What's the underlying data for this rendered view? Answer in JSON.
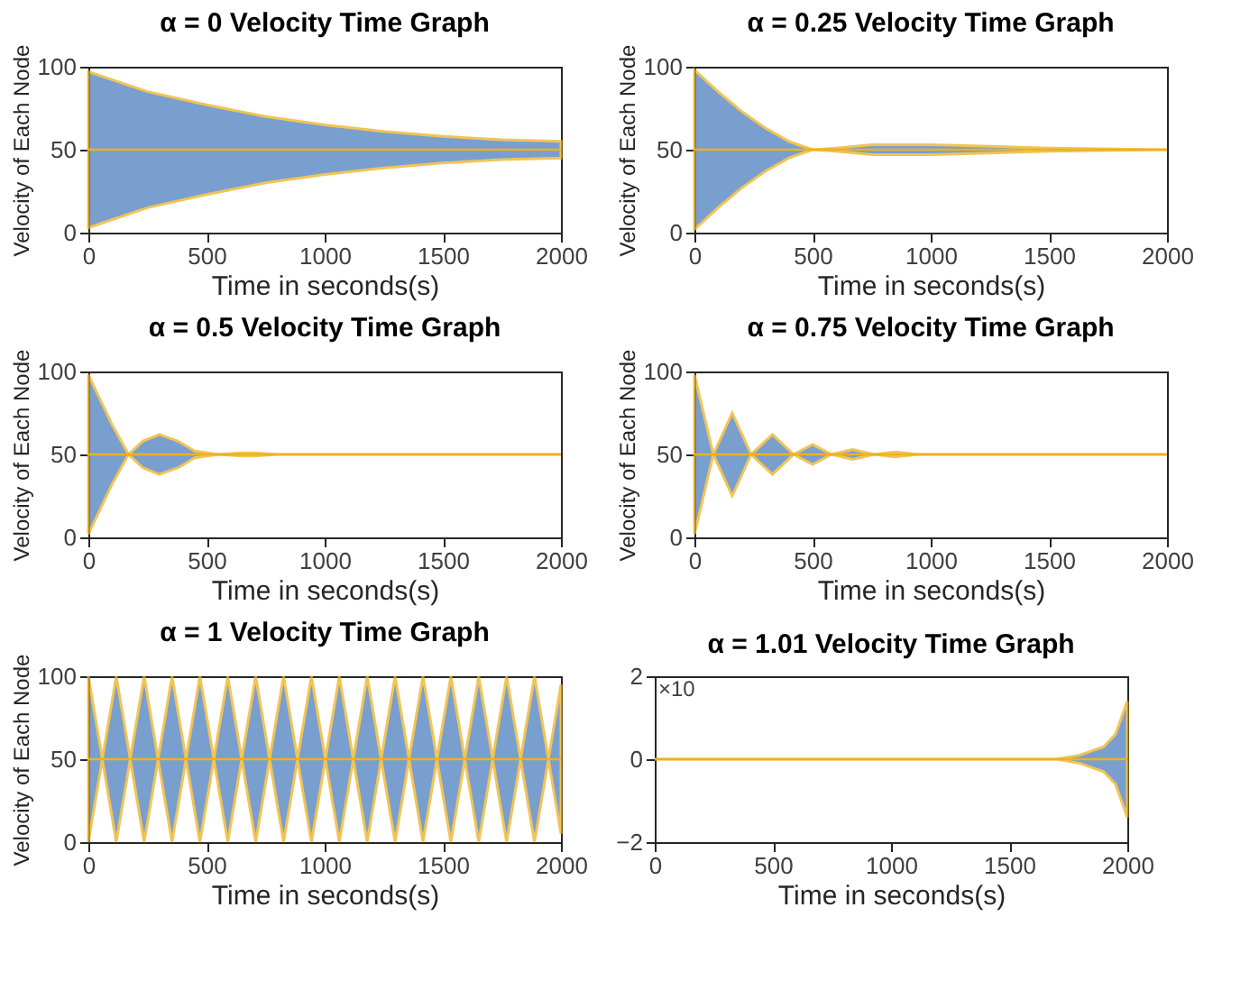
{
  "chart_data": [
    {
      "type": "line",
      "title": "α = 0 Velocity Time Graph",
      "xlabel": "Time in seconds(s)",
      "ylabel": "Velocity of Each Node",
      "xlim": [
        0,
        2000
      ],
      "xticks": [
        0,
        500,
        1000,
        1500,
        2000
      ],
      "ylim": [
        0,
        100
      ],
      "yticks": [
        0,
        50,
        100
      ],
      "grid": false,
      "series": [
        {
          "color": "#edb120",
          "x": [
            0,
            250,
            500,
            750,
            1000,
            1250,
            1500,
            1750,
            2000
          ],
          "values": [
            50,
            50,
            50,
            50,
            50,
            50,
            50,
            50,
            50
          ],
          "lower": [
            3,
            15,
            23,
            30,
            35,
            39,
            42,
            44,
            45
          ],
          "upper": [
            97,
            85,
            77,
            70,
            65,
            61,
            58,
            56,
            55
          ]
        }
      ]
    },
    {
      "type": "line",
      "title": "α = 0.25 Velocity Time Graph",
      "xlabel": "Time in seconds(s)",
      "ylabel": "Velocity of Each Node",
      "xlim": [
        0,
        2000
      ],
      "xticks": [
        0,
        500,
        1000,
        1500,
        2000
      ],
      "ylim": [
        0,
        100
      ],
      "yticks": [
        0,
        50,
        100
      ],
      "grid": false,
      "series": [
        {
          "color": "#edb120",
          "x": [
            0,
            100,
            200,
            300,
            400,
            500,
            600,
            750,
            1000,
            1250,
            1500,
            2000
          ],
          "values": [
            50,
            50,
            50,
            50,
            50,
            50,
            50,
            50,
            50,
            50,
            50,
            50
          ],
          "lower": [
            2,
            15,
            27,
            37,
            45,
            50,
            49,
            47,
            47,
            48,
            49,
            50
          ],
          "upper": [
            98,
            85,
            73,
            63,
            55,
            50,
            51,
            53,
            53,
            52,
            51,
            50
          ]
        }
      ]
    },
    {
      "type": "line",
      "title": "α = 0.5 Velocity Time Graph",
      "xlabel": "Time in seconds(s)",
      "ylabel": "Velocity of Each Node",
      "xlim": [
        0,
        2000
      ],
      "xticks": [
        0,
        500,
        1000,
        1500,
        2000
      ],
      "ylim": [
        0,
        100
      ],
      "yticks": [
        0,
        50,
        100
      ],
      "grid": false,
      "series": [
        {
          "color": "#edb120",
          "x": [
            0,
            50,
            100,
            170,
            230,
            300,
            380,
            450,
            550,
            650,
            700,
            800,
            2000
          ],
          "values": [
            50,
            50,
            50,
            50,
            50,
            50,
            50,
            50,
            50,
            50,
            50,
            50,
            50
          ],
          "lower": [
            2,
            17,
            32,
            50,
            42,
            38,
            42,
            48,
            50,
            49,
            49,
            50,
            50
          ],
          "upper": [
            98,
            83,
            68,
            50,
            58,
            62,
            58,
            52,
            50,
            51,
            51,
            50,
            50
          ]
        }
      ]
    },
    {
      "type": "line",
      "title": "α = 0.75 Velocity Time Graph",
      "xlabel": "Time in seconds(s)",
      "ylabel": "Velocity of Each Node",
      "xlim": [
        0,
        2000
      ],
      "xticks": [
        0,
        500,
        1000,
        1500,
        2000
      ],
      "ylim": [
        0,
        100
      ],
      "yticks": [
        0,
        50,
        100
      ],
      "grid": false,
      "series": [
        {
          "color": "#edb120",
          "x": [
            0,
            80,
            160,
            240,
            330,
            420,
            500,
            580,
            670,
            760,
            850,
            950,
            2000
          ],
          "values": [
            50,
            50,
            50,
            50,
            50,
            50,
            50,
            50,
            50,
            50,
            50,
            50,
            50
          ],
          "lower": [
            2,
            50,
            25,
            50,
            38,
            50,
            44,
            50,
            47,
            50,
            48.5,
            50,
            50
          ],
          "upper": [
            98,
            50,
            75,
            50,
            62,
            50,
            56,
            50,
            53,
            50,
            51.5,
            50,
            50
          ]
        }
      ]
    },
    {
      "type": "line",
      "title": "α = 1 Velocity Time Graph",
      "xlabel": "Time in seconds(s)",
      "ylabel": "Velocity of Each Node",
      "xlim": [
        0,
        2000
      ],
      "xticks": [
        0,
        500,
        1000,
        1500,
        2000
      ],
      "ylim": [
        0,
        100
      ],
      "yticks": [
        0,
        50,
        100
      ],
      "grid": false,
      "series": [
        {
          "color": "#edb120",
          "x": [
            0,
            59,
            118,
            177,
            236,
            295,
            354,
            413,
            472,
            531,
            590,
            649,
            708,
            767,
            826,
            885,
            944,
            1003,
            1062,
            1121,
            1180,
            1239,
            1298,
            1357,
            1416,
            1475,
            1534,
            1593,
            1652,
            1711,
            1770,
            1829,
            1888,
            1947,
            2000
          ],
          "values": [
            50,
            50,
            50,
            50,
            50,
            50,
            50,
            50,
            50,
            50,
            50,
            50,
            50,
            50,
            50,
            50,
            50,
            50,
            50,
            50,
            50,
            50,
            50,
            50,
            50,
            50,
            50,
            50,
            50,
            50,
            50,
            50,
            50,
            50,
            50
          ],
          "lower": [
            0,
            50,
            0,
            50,
            0,
            50,
            0,
            50,
            0,
            50,
            0,
            50,
            0,
            50,
            0,
            50,
            0,
            50,
            0,
            50,
            0,
            50,
            0,
            50,
            0,
            50,
            0,
            50,
            0,
            50,
            0,
            50,
            0,
            50,
            5
          ],
          "upper": [
            100,
            50,
            100,
            50,
            100,
            50,
            100,
            50,
            100,
            50,
            100,
            50,
            100,
            50,
            100,
            50,
            100,
            50,
            100,
            50,
            100,
            50,
            100,
            50,
            100,
            50,
            100,
            50,
            100,
            50,
            100,
            50,
            100,
            50,
            95
          ]
        }
      ]
    },
    {
      "type": "line",
      "title": "α = 1.01 Velocity Time Graph",
      "xlabel": "Time in seconds(s)",
      "annotations": [
        "×10"
      ],
      "xlim": [
        0,
        2000
      ],
      "xticks": [
        0,
        500,
        1000,
        1500,
        2000
      ],
      "ylim": [
        -2,
        2
      ],
      "yticks": [
        -2,
        0,
        2
      ],
      "grid": false,
      "series": [
        {
          "color": "#edb120",
          "x": [
            0,
            1700,
            1800,
            1900,
            1950,
            2000
          ],
          "values": [
            0,
            0,
            0,
            0,
            0,
            0
          ],
          "lower": [
            0,
            0,
            -0.1,
            -0.3,
            -0.6,
            -1.4
          ],
          "upper": [
            0,
            0,
            0.1,
            0.3,
            0.6,
            1.4
          ]
        }
      ]
    }
  ]
}
